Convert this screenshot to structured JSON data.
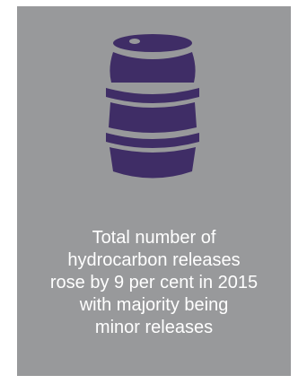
{
  "card": {
    "background": "#98999b",
    "icon": "oil-barrel-icon",
    "icon_color": "#3f2d66"
  },
  "caption": {
    "lines": [
      "Total number of",
      "hydrocarbon releases",
      "rose by 9 per cent in 2015",
      "with majority being",
      "minor releases"
    ]
  }
}
